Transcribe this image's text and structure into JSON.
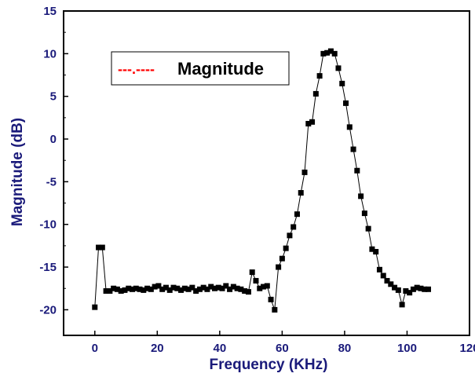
{
  "chart_data": {
    "type": "line",
    "xlabel": "Frequency (KHz)",
    "ylabel": "Magnitude (dB)",
    "xlim": [
      -10,
      120
    ],
    "ylim": [
      -23,
      15
    ],
    "xticks": [
      0,
      20,
      40,
      60,
      80,
      100,
      120
    ],
    "yticks": [
      -20,
      -15,
      -10,
      -5,
      0,
      5,
      10,
      15
    ],
    "grid": false,
    "legend": {
      "placement": "top-left",
      "sample": "---.----",
      "label": "Magnitude"
    },
    "colors": {
      "axis_text": "#1a1a7a",
      "series": "#000000",
      "legend_sample": "#ff0000"
    },
    "series": [
      {
        "name": "Magnitude",
        "marker": "square",
        "x": [
          0,
          1.2,
          2.4,
          3.6,
          4.8,
          6,
          7.2,
          8.4,
          9.6,
          10.8,
          12,
          13.2,
          14.4,
          15.6,
          16.8,
          18,
          19.2,
          20.4,
          21.6,
          22.8,
          24,
          25.2,
          26.4,
          27.6,
          28.8,
          30,
          31.2,
          32.4,
          33.6,
          34.8,
          36,
          37.2,
          38.4,
          39.6,
          40.8,
          42,
          43.2,
          44.4,
          45.6,
          46.8,
          48,
          49.2,
          50.4,
          51.6,
          52.8,
          54,
          55.2,
          56.4,
          57.6,
          58.8,
          60,
          61.2,
          62.4,
          63.6,
          64.8,
          66,
          67.2,
          68.4,
          69.6,
          70.8,
          72,
          73.2,
          74.4,
          75.6,
          76.8,
          78,
          79.2,
          80.4,
          81.6,
          82.8,
          84,
          85.2,
          86.4,
          87.6,
          88.8,
          90,
          91.2,
          92.4,
          93.6,
          94.8,
          96,
          97.2,
          98.4,
          99.6,
          100.8,
          102,
          103.2,
          104.4,
          105.6,
          106.8
        ],
        "y": [
          -19.7,
          -12.7,
          -12.7,
          -17.8,
          -17.8,
          -17.5,
          -17.6,
          -17.8,
          -17.7,
          -17.5,
          -17.6,
          -17.5,
          -17.6,
          -17.7,
          -17.5,
          -17.6,
          -17.3,
          -17.2,
          -17.6,
          -17.4,
          -17.7,
          -17.4,
          -17.5,
          -17.7,
          -17.5,
          -17.6,
          -17.4,
          -17.8,
          -17.6,
          -17.4,
          -17.6,
          -17.3,
          -17.5,
          -17.4,
          -17.5,
          -17.2,
          -17.6,
          -17.3,
          -17.5,
          -17.6,
          -17.8,
          -17.9,
          -15.6,
          -16.6,
          -17.5,
          -17.3,
          -17.2,
          -18.8,
          -20.0,
          -15.0,
          -14.0,
          -12.8,
          -11.3,
          -10.3,
          -8.8,
          -6.3,
          -3.9,
          1.8,
          2.0,
          5.3,
          7.4,
          10.0,
          10.1,
          10.3,
          10.0,
          8.3,
          6.5,
          4.2,
          1.4,
          -1.2,
          -3.7,
          -6.7,
          -8.7,
          -10.5,
          -12.9,
          -13.2,
          -15.3,
          -16.0,
          -16.6,
          -17.0,
          -17.4,
          -17.7,
          -19.4,
          -17.8,
          -18.0,
          -17.6,
          -17.4,
          -17.5,
          -17.6,
          -17.6
        ]
      }
    ]
  }
}
